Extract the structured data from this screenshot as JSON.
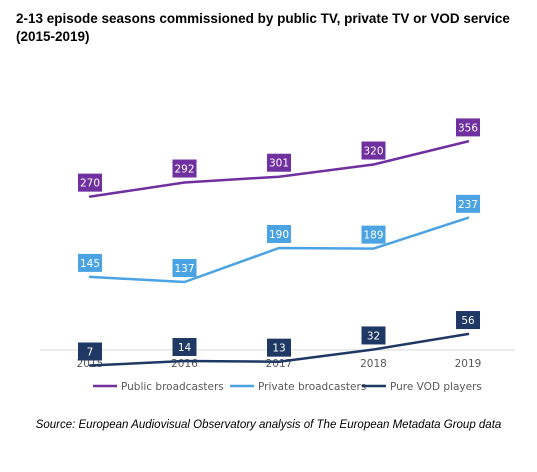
{
  "chart_data": {
    "type": "line",
    "title": "2-13 episode seasons commissioned by public TV, private TV or VOD service (2015-2019)",
    "source": "Source: European Audiovisual Observatory analysis of The European Metadata Group data",
    "x": [
      "2015",
      "2016",
      "2017",
      "2018",
      "2019"
    ],
    "ylim": [
      0,
      380
    ],
    "grid": false,
    "legend_position": "bottom",
    "series": [
      {
        "name": "Public broadcasters",
        "color": "#7030a0",
        "values": [
          270,
          292,
          301,
          320,
          356
        ]
      },
      {
        "name": "Private broadcasters",
        "color": "#4ba3e3",
        "values": [
          145,
          137,
          190,
          189,
          237
        ]
      },
      {
        "name": "Pure VOD players",
        "color": "#1f3864",
        "values": [
          7,
          14,
          13,
          32,
          56
        ]
      }
    ]
  }
}
